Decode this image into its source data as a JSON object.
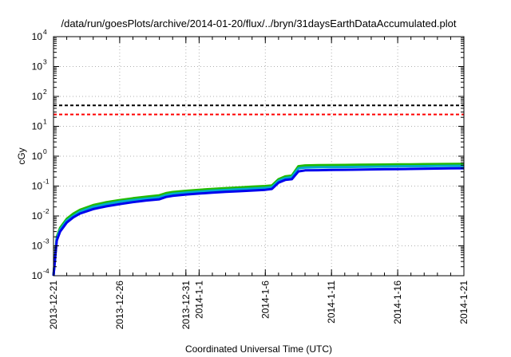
{
  "chart_data": {
    "type": "line",
    "title": "/data/run/goesPlots/archive/2014-01-20/flux/../bryn/31daysEarthDataAccumulated.plot",
    "xlabel": "Coordinated Universal Time (UTC)",
    "ylabel": "cGy",
    "yscale": "log",
    "ylim": [
      0.0001,
      10000
    ],
    "xlim": [
      "2013-12-21",
      "2014-01-21"
    ],
    "grid": true,
    "legend": "none",
    "x_ticks": [
      {
        "date": "2013-12-21",
        "label": "2013-12-21"
      },
      {
        "date": "2013-12-26",
        "label": "2013-12-26"
      },
      {
        "date": "2013-12-31",
        "label": "2013-12-31"
      },
      {
        "date": "2014-01-01",
        "label": "2014-1-1"
      },
      {
        "date": "2014-01-06",
        "label": "2014-1-6"
      },
      {
        "date": "2014-01-11",
        "label": "2014-1-11"
      },
      {
        "date": "2014-01-16",
        "label": "2014-1-16"
      },
      {
        "date": "2014-01-21",
        "label": "2014-1-21"
      }
    ],
    "y_ticks": [
      {
        "value": 0.0001,
        "base": "10",
        "exp": "-4"
      },
      {
        "value": 0.001,
        "base": "10",
        "exp": "-3"
      },
      {
        "value": 0.01,
        "base": "10",
        "exp": "-2"
      },
      {
        "value": 0.1,
        "base": "10",
        "exp": "-1"
      },
      {
        "value": 1,
        "base": "10",
        "exp": "0"
      },
      {
        "value": 10,
        "base": "10",
        "exp": "1"
      },
      {
        "value": 100,
        "base": "10",
        "exp": "2"
      },
      {
        "value": 1000,
        "base": "10",
        "exp": "3"
      },
      {
        "value": 10000,
        "base": "10",
        "exp": "4"
      }
    ],
    "reference_lines": [
      {
        "value": 50,
        "color": "#000000",
        "style": "dashed"
      },
      {
        "value": 25,
        "color": "#ff0000",
        "style": "dashed"
      }
    ],
    "series": [
      {
        "color": "#22bb00",
        "x": [
          "2013-12-21 00:00",
          "2013-12-21 06:00",
          "2013-12-21 12:00",
          "2013-12-22 00:00",
          "2013-12-22 12:00",
          "2013-12-23 00:00",
          "2013-12-24 00:00",
          "2013-12-25 00:00",
          "2013-12-26 00:00",
          "2013-12-27 00:00",
          "2013-12-28 00:00",
          "2013-12-29 00:00",
          "2013-12-29 12:00",
          "2013-12-30 00:00",
          "2013-12-31 00:00",
          "2014-01-01 00:00",
          "2014-01-02 00:00",
          "2014-01-03 00:00",
          "2014-01-04 00:00",
          "2014-01-05 00:00",
          "2014-01-06 00:00",
          "2014-01-06 12:00",
          "2014-01-07 00:00",
          "2014-01-07 12:00",
          "2014-01-08 00:00",
          "2014-01-08 12:00",
          "2014-01-09 00:00",
          "2014-01-10 00:00",
          "2014-01-11 00:00",
          "2014-01-12 00:00",
          "2014-01-13 00:00",
          "2014-01-14 00:00",
          "2014-01-15 00:00",
          "2014-01-16 00:00",
          "2014-01-17 00:00",
          "2014-01-18 00:00",
          "2014-01-19 00:00",
          "2014-01-20 00:00",
          "2014-01-21 00:00"
        ],
        "y": [
          0.0001,
          0.002,
          0.004,
          0.008,
          0.012,
          0.016,
          0.023,
          0.029,
          0.034,
          0.039,
          0.044,
          0.049,
          0.058,
          0.063,
          0.069,
          0.075,
          0.08,
          0.085,
          0.09,
          0.095,
          0.1,
          0.105,
          0.17,
          0.21,
          0.225,
          0.46,
          0.49,
          0.5,
          0.505,
          0.51,
          0.515,
          0.52,
          0.525,
          0.53,
          0.535,
          0.54,
          0.545,
          0.55,
          0.555
        ]
      },
      {
        "color": "#00aacc",
        "x": [
          "2013-12-21 00:00",
          "2013-12-21 06:00",
          "2013-12-21 12:00",
          "2013-12-22 00:00",
          "2013-12-22 12:00",
          "2013-12-23 00:00",
          "2013-12-24 00:00",
          "2013-12-25 00:00",
          "2013-12-26 00:00",
          "2013-12-27 00:00",
          "2013-12-28 00:00",
          "2013-12-29 00:00",
          "2013-12-29 12:00",
          "2013-12-30 00:00",
          "2013-12-31 00:00",
          "2014-01-01 00:00",
          "2014-01-02 00:00",
          "2014-01-03 00:00",
          "2014-01-04 00:00",
          "2014-01-05 00:00",
          "2014-01-06 00:00",
          "2014-01-06 12:00",
          "2014-01-07 00:00",
          "2014-01-07 12:00",
          "2014-01-08 00:00",
          "2014-01-08 12:00",
          "2014-01-09 00:00",
          "2014-01-10 00:00",
          "2014-01-11 00:00",
          "2014-01-12 00:00",
          "2014-01-13 00:00",
          "2014-01-14 00:00",
          "2014-01-15 00:00",
          "2014-01-16 00:00",
          "2014-01-17 00:00",
          "2014-01-18 00:00",
          "2014-01-19 00:00",
          "2014-01-20 00:00",
          "2014-01-21 00:00"
        ],
        "y": [
          0.0001,
          0.0018,
          0.0035,
          0.007,
          0.01,
          0.014,
          0.02,
          0.025,
          0.03,
          0.034,
          0.038,
          0.042,
          0.05,
          0.055,
          0.06,
          0.065,
          0.07,
          0.074,
          0.078,
          0.082,
          0.087,
          0.092,
          0.15,
          0.185,
          0.2,
          0.39,
          0.415,
          0.425,
          0.43,
          0.435,
          0.44,
          0.445,
          0.45,
          0.455,
          0.46,
          0.465,
          0.47,
          0.475,
          0.48
        ]
      },
      {
        "color": "#0000ee",
        "x": [
          "2013-12-21 00:00",
          "2013-12-21 06:00",
          "2013-12-21 12:00",
          "2013-12-22 00:00",
          "2013-12-22 12:00",
          "2013-12-23 00:00",
          "2013-12-24 00:00",
          "2013-12-25 00:00",
          "2013-12-26 00:00",
          "2013-12-27 00:00",
          "2013-12-28 00:00",
          "2013-12-29 00:00",
          "2013-12-29 12:00",
          "2013-12-30 00:00",
          "2013-12-31 00:00",
          "2014-01-01 00:00",
          "2014-01-02 00:00",
          "2014-01-03 00:00",
          "2014-01-04 00:00",
          "2014-01-05 00:00",
          "2014-01-06 00:00",
          "2014-01-06 12:00",
          "2014-01-07 00:00",
          "2014-01-07 12:00",
          "2014-01-08 00:00",
          "2014-01-08 12:00",
          "2014-01-09 00:00",
          "2014-01-10 00:00",
          "2014-01-11 00:00",
          "2014-01-12 00:00",
          "2014-01-13 00:00",
          "2014-01-14 00:00",
          "2014-01-15 00:00",
          "2014-01-16 00:00",
          "2014-01-17 00:00",
          "2014-01-18 00:00",
          "2014-01-19 00:00",
          "2014-01-20 00:00",
          "2014-01-21 00:00"
        ],
        "y": [
          0.0001,
          0.0015,
          0.003,
          0.006,
          0.009,
          0.012,
          0.017,
          0.021,
          0.025,
          0.029,
          0.033,
          0.036,
          0.043,
          0.047,
          0.052,
          0.056,
          0.06,
          0.064,
          0.067,
          0.071,
          0.075,
          0.08,
          0.13,
          0.16,
          0.17,
          0.31,
          0.335,
          0.34,
          0.345,
          0.35,
          0.355,
          0.36,
          0.365,
          0.37,
          0.375,
          0.38,
          0.385,
          0.39,
          0.395
        ]
      }
    ]
  }
}
